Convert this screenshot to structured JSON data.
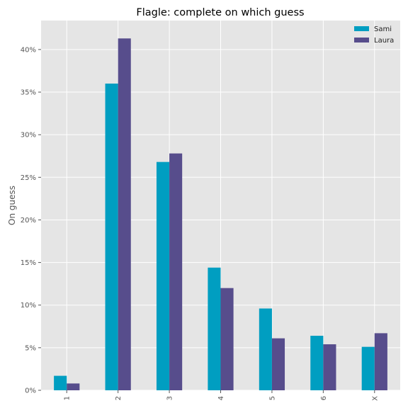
{
  "chart_data": {
    "type": "bar",
    "title": "Flagle: complete on which guess",
    "xlabel": "",
    "ylabel": "On guess",
    "categories": [
      "1",
      "2",
      "3",
      "4",
      "5",
      "6",
      "X"
    ],
    "series": [
      {
        "name": "Sami",
        "color": "#009ec1",
        "values": [
          1.7,
          36.0,
          26.8,
          14.4,
          9.6,
          6.4,
          5.1
        ]
      },
      {
        "name": "Laura",
        "color": "#574d8c",
        "values": [
          0.8,
          41.3,
          27.8,
          12.0,
          6.1,
          5.4,
          6.7
        ]
      }
    ],
    "ylim": [
      0,
      43.4
    ],
    "yticks": [
      0,
      5,
      10,
      15,
      20,
      25,
      30,
      35,
      40
    ],
    "ytick_labels": [
      "0%",
      "5%",
      "10%",
      "15%",
      "20%",
      "25%",
      "30%",
      "35%",
      "40%"
    ],
    "ytick_format": "percent",
    "grid": true,
    "legend_position": "top-right",
    "background": "#e5e5e5"
  }
}
